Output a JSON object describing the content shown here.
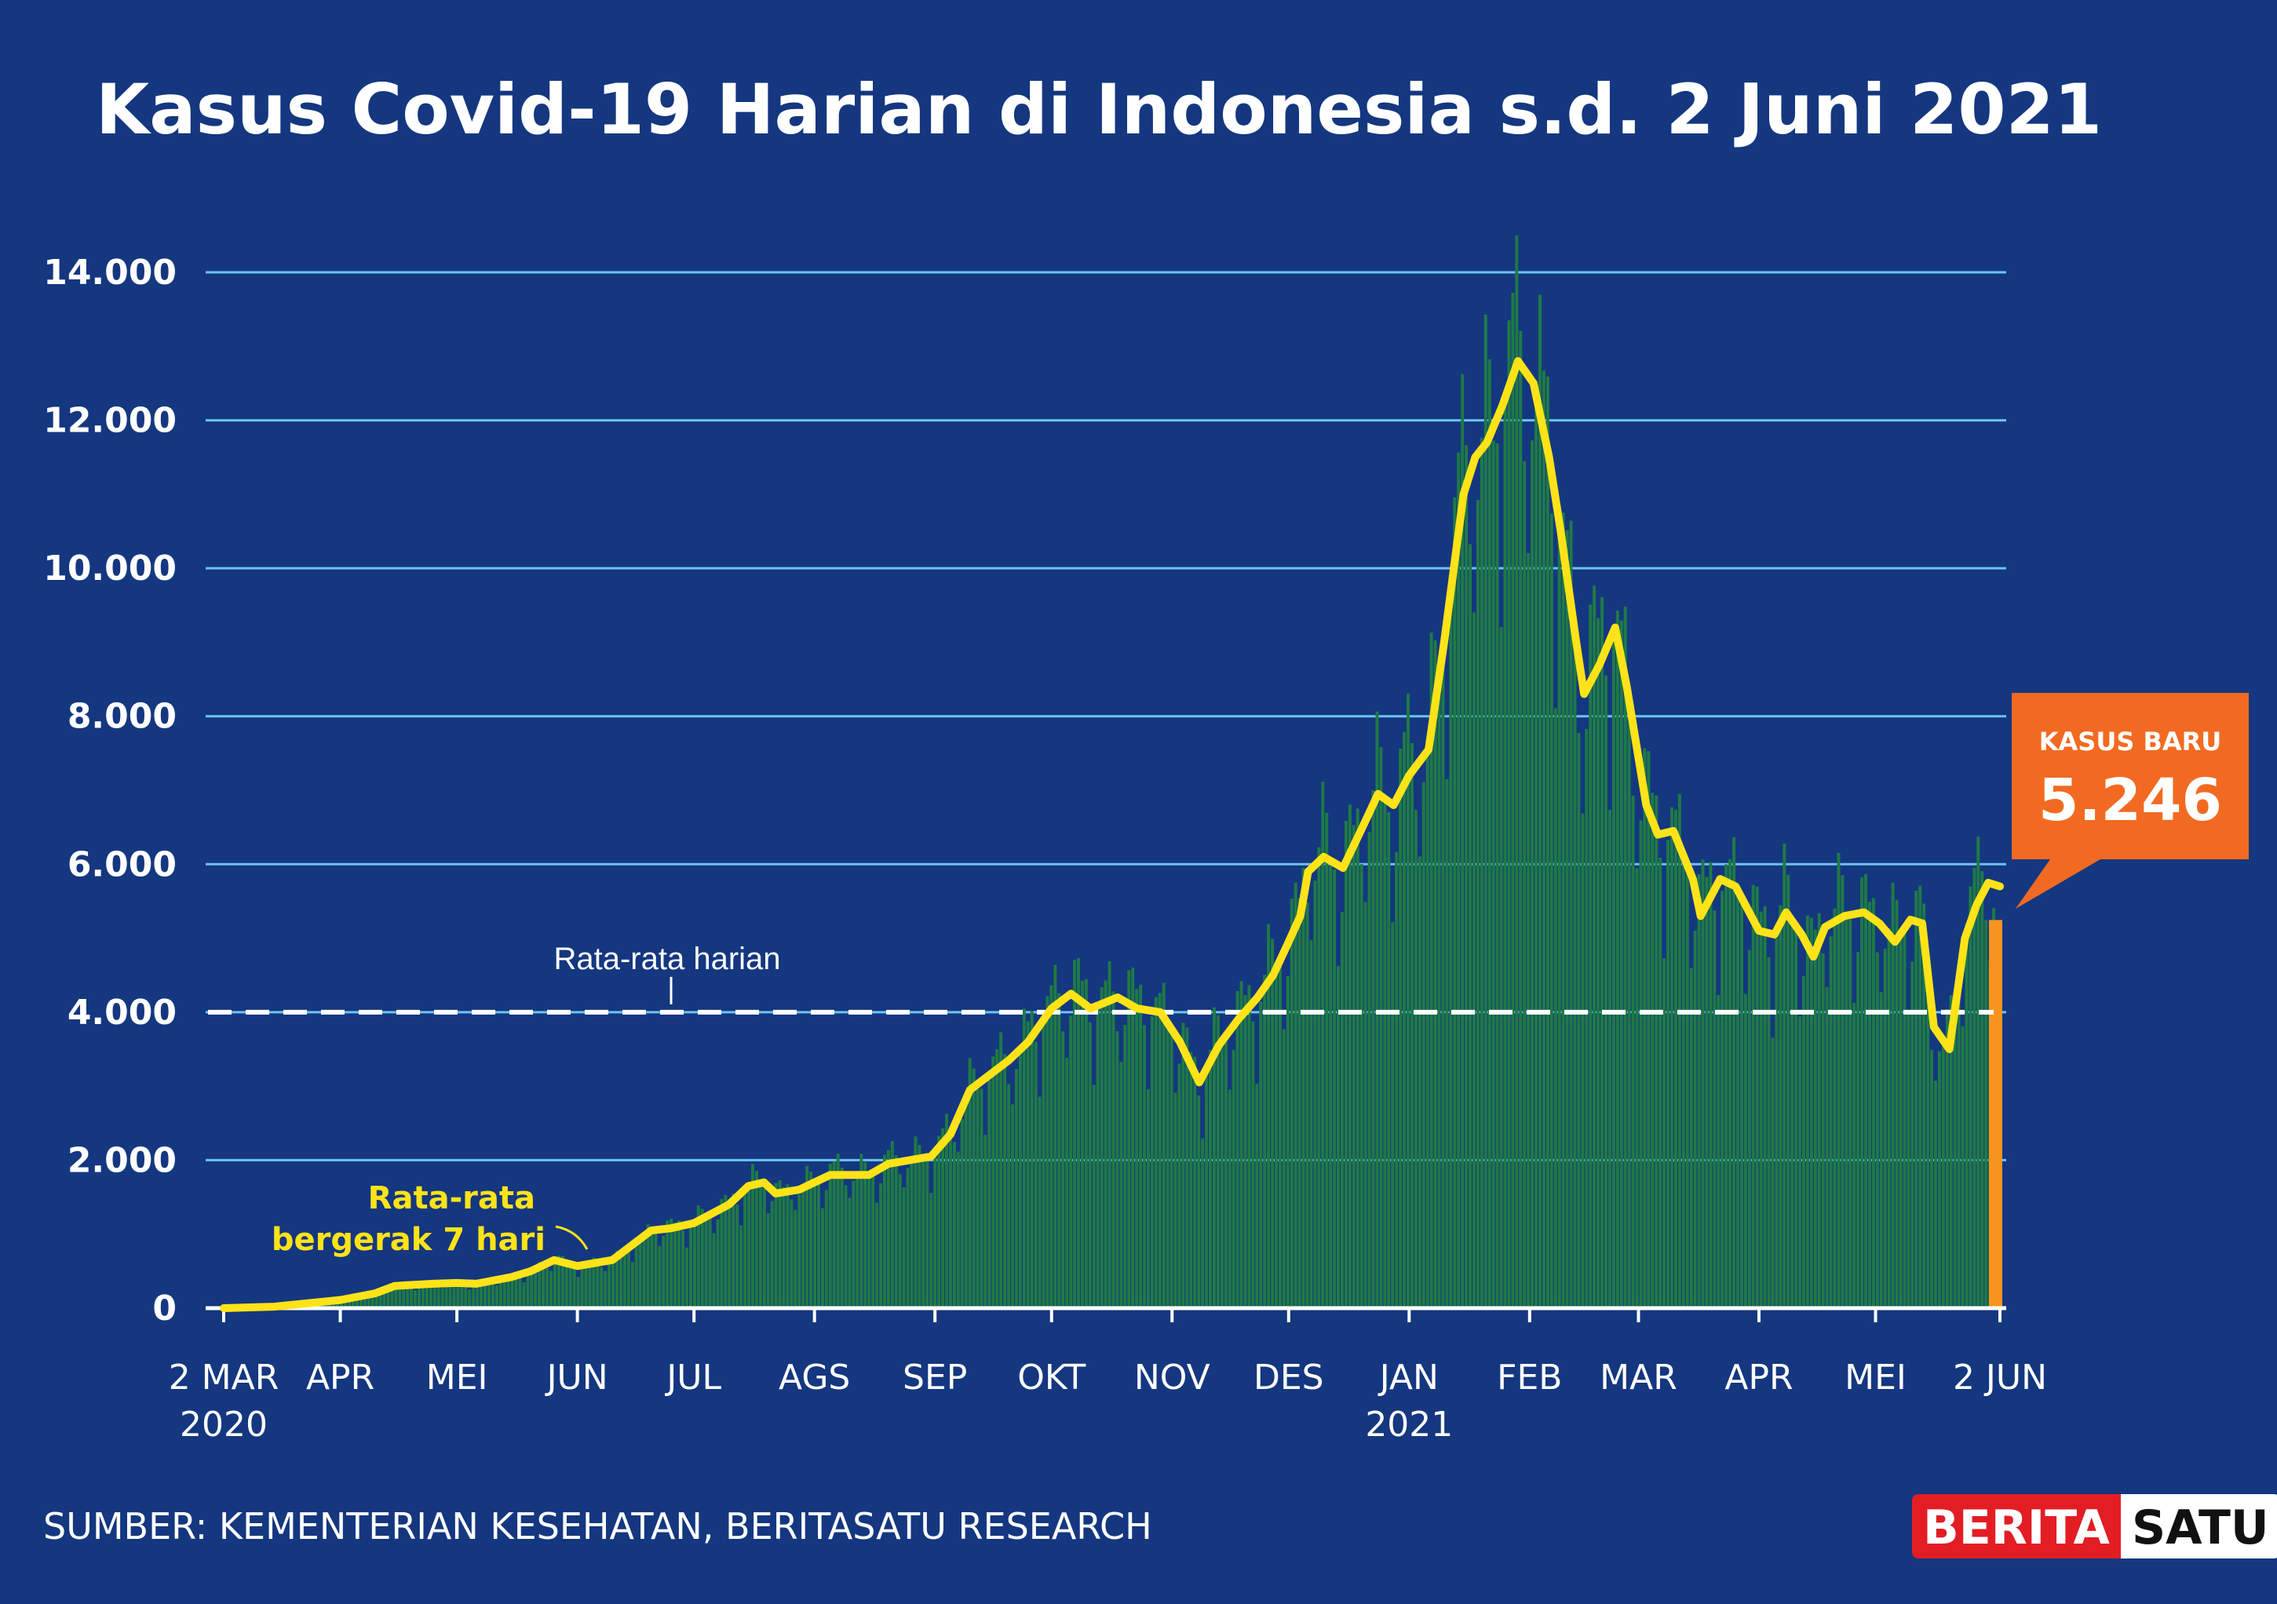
{
  "title": "Kasus Covid-19 Harian di Indonesia s.d. 2 Juni 2021",
  "source": "SUMBER: KEMENTERIAN KESEHATAN, BERITASATU RESEARCH",
  "logo": {
    "part1": "BERITA",
    "part2": "SATU"
  },
  "colors": {
    "background": "#143780",
    "bars": "#1f7a45",
    "moving_average": "#ffe318",
    "callout": "#f26a21",
    "last_bar": "#f7931e",
    "grid": "#6ec3f0"
  },
  "chart_data": {
    "type": "bar",
    "ylim": [
      0,
      14000
    ],
    "yticks": [
      0,
      2000,
      4000,
      6000,
      8000,
      10000,
      12000,
      14000
    ],
    "ytick_labels": [
      "0",
      "2.000",
      "4.000",
      "6.000",
      "8.000",
      "10.000",
      "12.000",
      "14.000"
    ],
    "xtick_labels": [
      {
        "date": "2020-03-02",
        "label": "2 MAR",
        "label2": "2020"
      },
      {
        "date": "2020-04-01",
        "label": "APR"
      },
      {
        "date": "2020-05-01",
        "label": "MEI"
      },
      {
        "date": "2020-06-01",
        "label": "JUN"
      },
      {
        "date": "2020-07-01",
        "label": "JUL"
      },
      {
        "date": "2020-08-01",
        "label": "AGS"
      },
      {
        "date": "2020-09-01",
        "label": "SEP"
      },
      {
        "date": "2020-10-01",
        "label": "OKT"
      },
      {
        "date": "2020-11-01",
        "label": "NOV"
      },
      {
        "date": "2020-12-01",
        "label": "DES"
      },
      {
        "date": "2021-01-01",
        "label": "JAN",
        "label2": "2021"
      },
      {
        "date": "2021-02-01",
        "label": "FEB"
      },
      {
        "date": "2021-03-01",
        "label": "MAR"
      },
      {
        "date": "2021-04-01",
        "label": "APR"
      },
      {
        "date": "2021-05-01",
        "label": "MEI"
      },
      {
        "date": "2021-06-02",
        "label": "2 JUN"
      }
    ],
    "series": [
      {
        "type": "line",
        "name": "Rata-rata bergerak 7 hari",
        "points": [
          [
            "2020-03-02",
            0
          ],
          [
            "2020-03-15",
            20
          ],
          [
            "2020-04-01",
            110
          ],
          [
            "2020-04-10",
            200
          ],
          [
            "2020-04-15",
            300
          ],
          [
            "2020-04-25",
            330
          ],
          [
            "2020-05-01",
            340
          ],
          [
            "2020-05-06",
            330
          ],
          [
            "2020-05-15",
            420
          ],
          [
            "2020-05-20",
            500
          ],
          [
            "2020-05-26",
            650
          ],
          [
            "2020-06-01",
            570
          ],
          [
            "2020-06-10",
            650
          ],
          [
            "2020-06-20",
            1050
          ],
          [
            "2020-06-25",
            1080
          ],
          [
            "2020-07-01",
            1150
          ],
          [
            "2020-07-10",
            1400
          ],
          [
            "2020-07-15",
            1650
          ],
          [
            "2020-07-19",
            1700
          ],
          [
            "2020-07-22",
            1550
          ],
          [
            "2020-07-28",
            1600
          ],
          [
            "2020-08-05",
            1800
          ],
          [
            "2020-08-15",
            1800
          ],
          [
            "2020-08-20",
            1950
          ],
          [
            "2020-08-31",
            2050
          ],
          [
            "2020-09-05",
            2350
          ],
          [
            "2020-09-10",
            2950
          ],
          [
            "2020-09-15",
            3150
          ],
          [
            "2020-09-20",
            3350
          ],
          [
            "2020-09-25",
            3600
          ],
          [
            "2020-10-01",
            4050
          ],
          [
            "2020-10-06",
            4250
          ],
          [
            "2020-10-11",
            4050
          ],
          [
            "2020-10-18",
            4200
          ],
          [
            "2020-10-23",
            4050
          ],
          [
            "2020-10-29",
            4000
          ],
          [
            "2020-11-03",
            3600
          ],
          [
            "2020-11-08",
            3050
          ],
          [
            "2020-11-13",
            3550
          ],
          [
            "2020-11-18",
            3900
          ],
          [
            "2020-11-23",
            4200
          ],
          [
            "2020-11-27",
            4500
          ],
          [
            "2020-12-01",
            4950
          ],
          [
            "2020-12-04",
            5300
          ],
          [
            "2020-12-06",
            5900
          ],
          [
            "2020-12-10",
            6100
          ],
          [
            "2020-12-15",
            5950
          ],
          [
            "2020-12-20",
            6500
          ],
          [
            "2020-12-24",
            6950
          ],
          [
            "2020-12-28",
            6800
          ],
          [
            "2021-01-01",
            7200
          ],
          [
            "2021-01-06",
            7550
          ],
          [
            "2021-01-10",
            9000
          ],
          [
            "2021-01-15",
            11000
          ],
          [
            "2021-01-18",
            11500
          ],
          [
            "2021-01-21",
            11700
          ],
          [
            "2021-01-25",
            12200
          ],
          [
            "2021-01-29",
            12800
          ],
          [
            "2021-02-02",
            12500
          ],
          [
            "2021-02-06",
            11500
          ],
          [
            "2021-02-09",
            10500
          ],
          [
            "2021-02-13",
            9000
          ],
          [
            "2021-02-15",
            8300
          ],
          [
            "2021-02-19",
            8700
          ],
          [
            "2021-02-23",
            9200
          ],
          [
            "2021-02-26",
            8400
          ],
          [
            "2021-03-03",
            6800
          ],
          [
            "2021-03-06",
            6400
          ],
          [
            "2021-03-10",
            6450
          ],
          [
            "2021-03-15",
            5800
          ],
          [
            "2021-03-17",
            5300
          ],
          [
            "2021-03-22",
            5800
          ],
          [
            "2021-03-26",
            5700
          ],
          [
            "2021-04-01",
            5100
          ],
          [
            "2021-04-05",
            5050
          ],
          [
            "2021-04-08",
            5350
          ],
          [
            "2021-04-12",
            5050
          ],
          [
            "2021-04-15",
            4750
          ],
          [
            "2021-04-18",
            5150
          ],
          [
            "2021-04-23",
            5300
          ],
          [
            "2021-04-28",
            5350
          ],
          [
            "2021-05-02",
            5200
          ],
          [
            "2021-05-06",
            4950
          ],
          [
            "2021-05-10",
            5250
          ],
          [
            "2021-05-13",
            5200
          ],
          [
            "2021-05-16",
            3800
          ],
          [
            "2021-05-20",
            3500
          ],
          [
            "2021-05-24",
            5000
          ],
          [
            "2021-05-27",
            5450
          ],
          [
            "2021-05-30",
            5750
          ],
          [
            "2021-06-02",
            5700
          ]
        ]
      }
    ],
    "average_line": {
      "value": 4000,
      "label": "Rata-rata harian"
    },
    "annotation": {
      "line1": "Rata-rata",
      "line2": "bergerak 7 hari"
    },
    "callout": {
      "label": "KASUS BARU",
      "value": "5.246",
      "date": "2021-06-02",
      "cases": 5246
    }
  }
}
